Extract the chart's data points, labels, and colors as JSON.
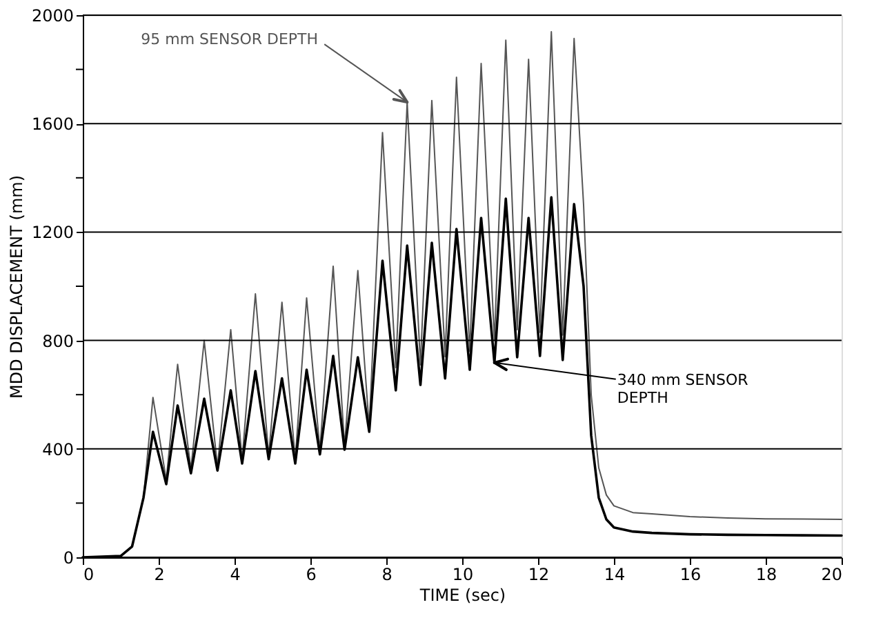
{
  "chart_data": {
    "type": "line",
    "xlabel": "TIME (sec)",
    "ylabel": "MDD DISPLACEMENT (mm)",
    "xlim": [
      0,
      20
    ],
    "xticks": [
      0,
      2,
      4,
      6,
      8,
      10,
      12,
      14,
      16,
      18,
      20
    ],
    "ylim": [
      0,
      2000
    ],
    "yticks": [
      0,
      {
        "value": 200,
        "label": null
      },
      400,
      {
        "value": 600,
        "label": null
      },
      800,
      {
        "value": 1000,
        "label": null
      },
      1200,
      {
        "value": 1400,
        "label": null
      },
      1600,
      {
        "value": 1800,
        "label": null
      },
      2000
    ],
    "grid": "y",
    "marker": "none",
    "line_style": "solid",
    "series": [
      {
        "name": "95 mm SENSOR DEPTH",
        "color": "#555555",
        "x": [
          0,
          1.0,
          1.3,
          1.6,
          1.85,
          2.2,
          2.5,
          2.85,
          3.2,
          3.55,
          3.9,
          4.2,
          4.55,
          4.9,
          5.25,
          5.6,
          5.9,
          6.25,
          6.6,
          6.9,
          7.25,
          7.55,
          7.9,
          8.25,
          8.55,
          8.9,
          9.2,
          9.55,
          9.85,
          10.2,
          10.5,
          10.85,
          11.15,
          11.45,
          11.75,
          12.05,
          12.35,
          12.65,
          12.95,
          13.2,
          13.4,
          13.6,
          13.8,
          14.0,
          14.5,
          15,
          16,
          17,
          18,
          19,
          20
        ],
        "values": [
          0,
          5,
          40,
          220,
          590,
          285,
          712,
          325,
          800,
          335,
          840,
          360,
          972,
          375,
          941,
          360,
          957,
          395,
          1074,
          410,
          1058,
          480,
          1567,
          700,
          1679,
          710,
          1685,
          740,
          1771,
          760,
          1822,
          800,
          1908,
          840,
          1837,
          830,
          1939,
          820,
          1914,
          1300,
          600,
          330,
          230,
          190,
          165,
          160,
          150,
          145,
          142,
          141,
          140
        ]
      },
      {
        "name": "340 mm SENSOR\nDEPTH",
        "color": "#000000",
        "x": [
          0,
          1.0,
          1.3,
          1.6,
          1.85,
          2.2,
          2.5,
          2.85,
          3.2,
          3.55,
          3.9,
          4.2,
          4.55,
          4.9,
          5.25,
          5.6,
          5.9,
          6.25,
          6.6,
          6.9,
          7.25,
          7.55,
          7.9,
          8.25,
          8.55,
          8.9,
          9.2,
          9.55,
          9.85,
          10.2,
          10.5,
          10.85,
          11.15,
          11.45,
          11.75,
          12.05,
          12.35,
          12.65,
          12.95,
          13.2,
          13.4,
          13.6,
          13.8,
          14.0,
          14.5,
          15,
          16,
          17,
          18,
          19,
          20
        ],
        "values": [
          0,
          5,
          40,
          220,
          463,
          270,
          560,
          310,
          585,
          320,
          616,
          346,
          687,
          362,
          660,
          346,
          692,
          380,
          743,
          397,
          738,
          463,
          1094,
          616,
          1150,
          636,
          1160,
          660,
          1211,
          692,
          1252,
          718,
          1323,
          738,
          1252,
          743,
          1328,
          728,
          1303,
          1000,
          450,
          220,
          140,
          110,
          95,
          90,
          85,
          83,
          82,
          81,
          80
        ]
      }
    ]
  }
}
